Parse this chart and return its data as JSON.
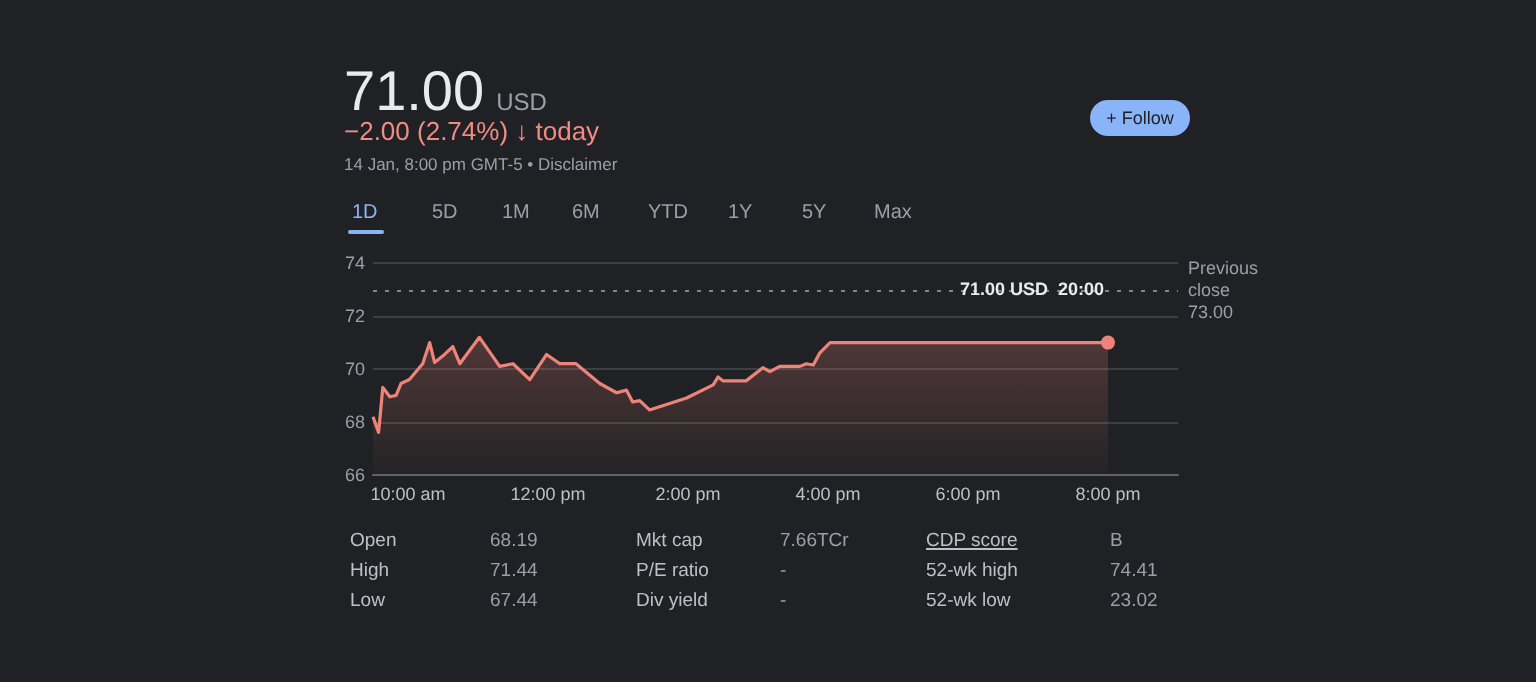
{
  "chart_data": {
    "type": "area",
    "title": "71.00 USD",
    "subtitle": "−2.00 (2.74%) ↓ today",
    "annotations": [
      "14 Jan, 8:00 pm GMT-5 • Disclaimer",
      "+ Follow",
      "1D",
      "5D",
      "1M",
      "6M",
      "YTD",
      "1Y",
      "5Y",
      "Max",
      "Open",
      "68.19",
      "Mkt cap",
      "7.66TCr",
      "CDP score",
      "B",
      "High",
      "71.44",
      "P/E ratio",
      "-",
      "52-wk high",
      "74.41",
      "Low",
      "67.44",
      "Div yield",
      "-",
      "52-wk low",
      "23.02",
      {
        "text": "71.00 USD  20:00",
        "x": 20,
        "y": 71
      }
    ],
    "series": [
      {
        "color": "#ee8379",
        "x": [
          9.5,
          9.58,
          9.64,
          9.74,
          9.83,
          9.9,
          10.02,
          10.21,
          10.31,
          10.38,
          10.5,
          10.64,
          10.74,
          11.02,
          11.31,
          11.5,
          11.74,
          11.98,
          12.17,
          12.4,
          12.74,
          12.98,
          13.12,
          13.21,
          13.31,
          13.45,
          13.98,
          14.36,
          14.43,
          14.5,
          14.83,
          15.07,
          15.17,
          15.31,
          15.6,
          15.69,
          15.79,
          15.88,
          16.03,
          20
        ],
        "values": [
          68.19,
          67.6,
          69.3,
          68.95,
          69.0,
          69.45,
          69.6,
          70.2,
          71.0,
          70.25,
          70.5,
          70.85,
          70.2,
          71.2,
          70.1,
          70.2,
          69.6,
          70.55,
          70.2,
          70.2,
          69.45,
          69.1,
          69.2,
          68.75,
          68.8,
          68.45,
          68.9,
          69.4,
          69.7,
          69.55,
          69.55,
          70.05,
          69.9,
          70.1,
          70.1,
          70.2,
          70.15,
          70.6,
          71.0,
          71.0
        ]
      }
    ],
    "xlim": [
      9.5,
      21
    ],
    "xticks": [
      {
        "value": 10,
        "label": "10:00 am"
      },
      {
        "value": 12,
        "label": "12:00 pm"
      },
      {
        "value": 14,
        "label": "2:00 pm"
      },
      {
        "value": 16,
        "label": "4:00 pm"
      },
      {
        "value": 18,
        "label": "6:00 pm"
      },
      {
        "value": 20,
        "label": "8:00 pm"
      }
    ],
    "ylim": [
      66,
      74
    ],
    "yticks": [
      66,
      68,
      70,
      72,
      74
    ],
    "grid": "y",
    "marker": "none",
    "line_style": "solid",
    "ref_lines": [
      {
        "axis": "y",
        "value": 73,
        "label": "Previous close 73.00",
        "line_style": "dotted"
      }
    ]
  }
}
